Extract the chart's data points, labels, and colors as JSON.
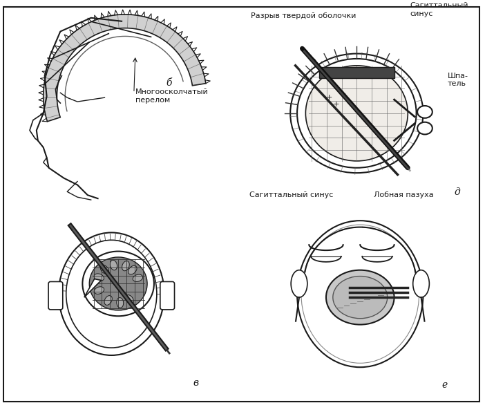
{
  "bg_color": "#ffffff",
  "border_color": "#444444",
  "text_color": "#1a1a1a",
  "label_б": "б",
  "label_в": "в",
  "label_д": "д",
  "label_е": "е",
  "text_mnogooskolchatyy": "Многоосколчатый\nперелом",
  "text_razryv": "Разрыв твердой оболочки",
  "text_sagittalnyy_sinus_top": "Сагиттальный\nсинус",
  "text_shpatel": "Шпа-\nтель",
  "text_sagittalnyy_sinus_bot": "Сагиттальный синус",
  "text_lobnaya_pazukha": "Лобная пазуха",
  "line_color": "#1a1a1a",
  "gray_light": "#e8e8e8",
  "gray_mid": "#cccccc",
  "gray_dark": "#999999",
  "hatch_color": "#555555"
}
